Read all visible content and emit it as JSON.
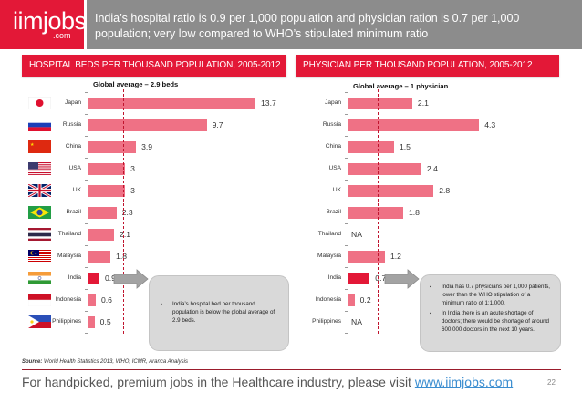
{
  "brand": {
    "logo_main": "iimjobs",
    "logo_sub": ".com",
    "color": "#e31837"
  },
  "header": {
    "title": "India’s hospital ratio is 0.9 per 1,000 population and physician ration is 0.7 per 1,000 population; very low compared to WHO’s stipulated minimum ratio"
  },
  "colors": {
    "bar": "#ef7185",
    "bar_highlight": "#e31837",
    "header_gray": "#8c8c8c",
    "avg_line": "#c0142e"
  },
  "countries": [
    {
      "name": "Japan",
      "flag_icon": "japan-flag-icon"
    },
    {
      "name": "Russia",
      "flag_icon": "russia-flag-icon"
    },
    {
      "name": "China",
      "flag_icon": "china-flag-icon"
    },
    {
      "name": "USA",
      "flag_icon": "usa-flag-icon"
    },
    {
      "name": "UK",
      "flag_icon": "uk-flag-icon"
    },
    {
      "name": "Brazil",
      "flag_icon": "brazil-flag-icon"
    },
    {
      "name": "Thailand",
      "flag_icon": "thailand-flag-icon"
    },
    {
      "name": "Malaysia",
      "flag_icon": "malaysia-flag-icon"
    },
    {
      "name": "India",
      "flag_icon": "india-flag-icon"
    },
    {
      "name": "Indonesia",
      "flag_icon": "indonesia-flag-icon"
    },
    {
      "name": "Philippines",
      "flag_icon": "philippines-flag-icon"
    }
  ],
  "chart_data": [
    {
      "type": "bar",
      "orientation": "horizontal",
      "title": "HOSPITAL BEDS PER THOUSAND POPULATION, 2005-2012",
      "categories": [
        "Japan",
        "Russia",
        "China",
        "USA",
        "UK",
        "Brazil",
        "Thailand",
        "Malaysia",
        "India",
        "Indonesia",
        "Philippines"
      ],
      "values": [
        13.7,
        9.7,
        3.9,
        3,
        3,
        2.3,
        2.1,
        1.8,
        0.9,
        0.6,
        0.5
      ],
      "value_labels": [
        "13.7",
        "9.7",
        "3.9",
        "3",
        "3",
        "2.3",
        "2.1",
        "1.8",
        "0.9",
        "0.6",
        "0.5"
      ],
      "highlight": "India",
      "reference_line": {
        "label": "Global average – 2.9 beds",
        "value": 2.9
      },
      "xlabel": "",
      "ylabel": "",
      "xlim": [
        0,
        14
      ],
      "grid": false,
      "callout": [
        "India’s hospital bed per thousand population is below the global average of 2.9 beds."
      ]
    },
    {
      "type": "bar",
      "orientation": "horizontal",
      "title": "PHYSICIAN PER THOUSAND POPULATION, 2005-2012",
      "categories": [
        "Japan",
        "Russia",
        "China",
        "USA",
        "UK",
        "Brazil",
        "Thailand",
        "Malaysia",
        "India",
        "Indonesia",
        "Philippines"
      ],
      "values": [
        2.1,
        4.3,
        1.5,
        2.4,
        2.8,
        1.8,
        null,
        1.2,
        0.7,
        0.2,
        null
      ],
      "value_labels": [
        "2.1",
        "4.3",
        "1.5",
        "2.4",
        "2.8",
        "1.8",
        "NA",
        "1.2",
        "0.7",
        "0.2",
        "NA"
      ],
      "highlight": "India",
      "reference_line": {
        "label": "Global average – 1 physician",
        "value": 1
      },
      "xlabel": "",
      "ylabel": "",
      "xlim": [
        0,
        4.5
      ],
      "grid": false,
      "callout": [
        "India has 0.7 physicians per 1,000 patients, lower than the WHO stipulation of a minimum ratio of 1:1,000.",
        "In India there is an acute shortage of doctors; there would be shortage of around 600,000 doctors in the next 10 years."
      ]
    }
  ],
  "source": {
    "label": "Source:",
    "text": " World Health Statistics 2013, WHO, ICMR, Aranca Analysis"
  },
  "footer": {
    "text": "For handpicked, premium jobs in the Healthcare industry, please visit ",
    "link": "www.iimjobs.com",
    "page_number": "22"
  },
  "bullet_glyph": "▪"
}
